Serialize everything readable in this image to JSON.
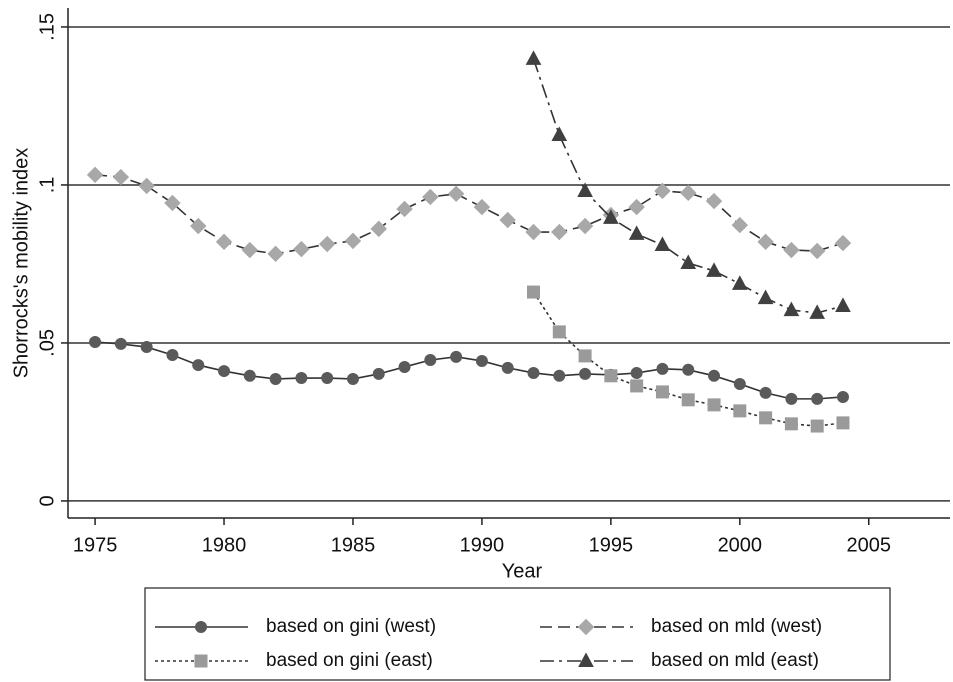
{
  "chart_data": {
    "type": "line",
    "xlabel": "Year",
    "ylabel": "Shorrocks's mobility index",
    "x": [
      1975,
      1976,
      1977,
      1978,
      1979,
      1980,
      1981,
      1982,
      1983,
      1984,
      1985,
      1986,
      1987,
      1988,
      1989,
      1990,
      1991,
      1992,
      1993,
      1994,
      1995,
      1996,
      1997,
      1998,
      1999,
      2000,
      2001,
      2002,
      2003,
      2004
    ],
    "series": [
      {
        "name": "based on gini (west)",
        "color": "#5a5a5a",
        "marker": "circle",
        "dash": "solid",
        "values": [
          0.0503,
          0.0497,
          0.0487,
          0.0462,
          0.043,
          0.0411,
          0.0396,
          0.0386,
          0.0389,
          0.0389,
          0.0386,
          0.0402,
          0.0424,
          0.0446,
          0.0456,
          0.0443,
          0.0421,
          0.0405,
          0.0396,
          0.0402,
          0.0399,
          0.0405,
          0.0418,
          0.0415,
          0.0396,
          0.037,
          0.0342,
          0.0323,
          0.0323,
          0.0329
        ]
      },
      {
        "name": "based on mld (west)",
        "color": "#a8a8a8",
        "marker": "diamond",
        "dash": "dashed",
        "values": [
          0.1032,
          0.1025,
          0.0997,
          0.0943,
          0.087,
          0.082,
          0.0794,
          0.0782,
          0.0797,
          0.0813,
          0.0823,
          0.0861,
          0.0924,
          0.0962,
          0.0972,
          0.093,
          0.0889,
          0.0851,
          0.0851,
          0.087,
          0.0905,
          0.093,
          0.0981,
          0.0975,
          0.0949,
          0.0873,
          0.082,
          0.0794,
          0.0791,
          0.0816
        ]
      },
      {
        "name": "based on gini (east)",
        "color": "#9a9a9a",
        "marker": "square",
        "dash": "dotted",
        "values": [
          null,
          null,
          null,
          null,
          null,
          null,
          null,
          null,
          null,
          null,
          null,
          null,
          null,
          null,
          null,
          null,
          null,
          0.0661,
          0.0535,
          0.0459,
          0.0396,
          0.0364,
          0.0345,
          0.032,
          0.0304,
          0.0285,
          0.0263,
          0.0244,
          0.0237,
          0.0247
        ]
      },
      {
        "name": "based on mld (east)",
        "color": "#404040",
        "marker": "triangle",
        "dash": "dashdot",
        "values": [
          null,
          null,
          null,
          null,
          null,
          null,
          null,
          null,
          null,
          null,
          null,
          null,
          null,
          null,
          null,
          null,
          null,
          0.1399,
          0.1158,
          0.0981,
          0.0896,
          0.0845,
          0.081,
          0.0753,
          0.0728,
          0.0687,
          0.0642,
          0.0604,
          0.0595,
          0.0617
        ]
      }
    ],
    "line_color": "#333333",
    "xlim": [
      1973.95,
      2008.15
    ],
    "xticks": [
      1975,
      1980,
      1985,
      1990,
      1995,
      2000,
      2005
    ],
    "ylim": [
      -0.0054,
      0.156
    ],
    "yticks": [
      0,
      {
        "value": 0.05,
        "label": ".05"
      },
      {
        "value": 0.1,
        "label": ".1"
      },
      {
        "value": 0.15,
        "label": ".15"
      }
    ],
    "grid": true
  }
}
